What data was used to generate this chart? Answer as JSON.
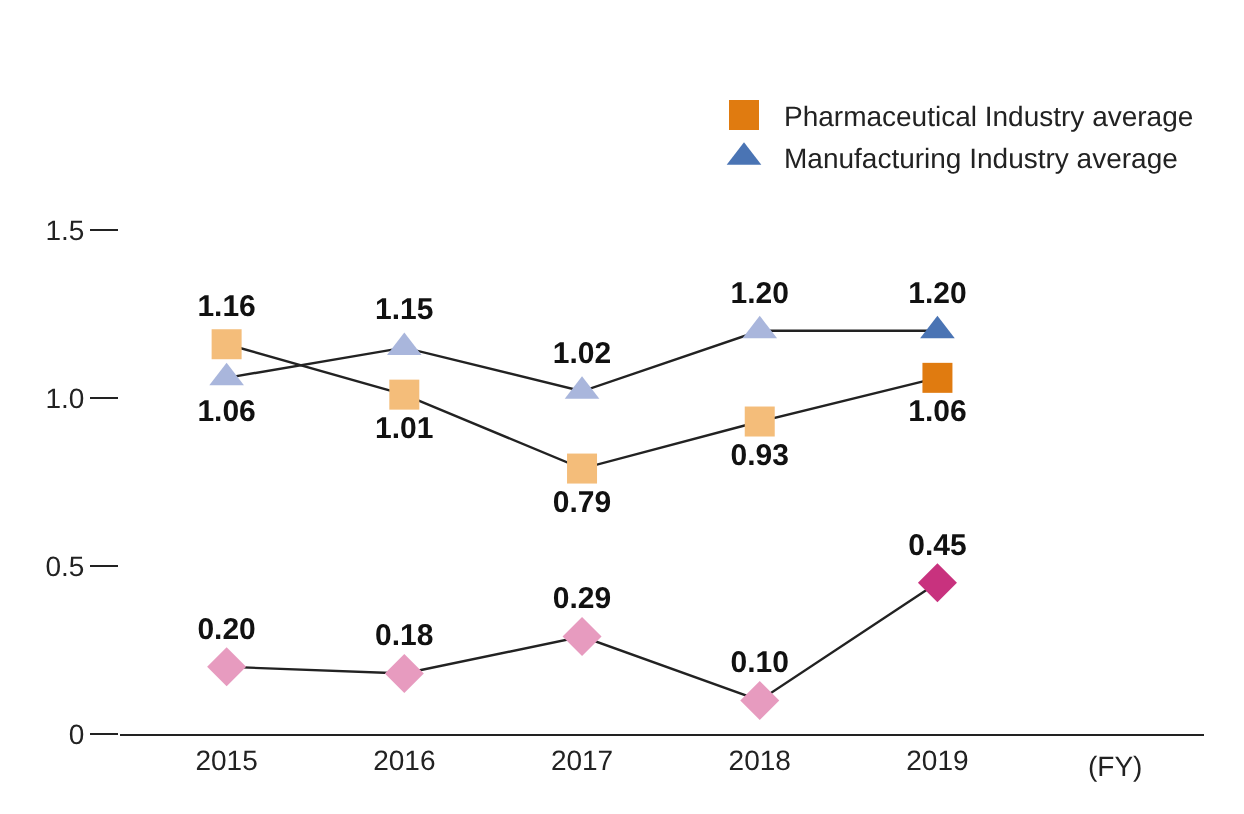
{
  "chart_data": {
    "type": "line",
    "categories": [
      "2015",
      "2016",
      "2017",
      "2018",
      "2019"
    ],
    "xlabel": "(FY)",
    "series": [
      {
        "color": "#222222",
        "colors": [
          "#e79bbf",
          "#e79bbf",
          "#e79bbf",
          "#e79bbf",
          "#c8327e"
        ],
        "values": [
          0.2,
          0.18,
          0.29,
          0.1,
          0.45
        ],
        "value_labels": [
          "0.20",
          "0.18",
          "0.29",
          "0.10",
          "0.45"
        ],
        "marker": "diamond"
      },
      {
        "name": "Pharmaceutical Industry average",
        "color": "#222222",
        "colors": [
          "#f4bd7a",
          "#f4bd7a",
          "#f4bd7a",
          "#f4bd7a",
          "#e07b10"
        ],
        "values": [
          1.16,
          1.01,
          0.79,
          0.93,
          1.06
        ],
        "value_labels": [
          "1.16",
          "1.01",
          "0.79",
          "0.93",
          "1.06"
        ],
        "marker": "square"
      },
      {
        "name": "Manufacturing Industry average",
        "color": "#222222",
        "colors": [
          "#a9b6dc",
          "#a9b6dc",
          "#a9b6dc",
          "#a9b6dc",
          "#4a74b4"
        ],
        "values": [
          1.06,
          1.15,
          1.02,
          1.2,
          1.2
        ],
        "value_labels": [
          "1.06",
          "1.15",
          "1.02",
          "1.20",
          "1.20"
        ],
        "marker": "triangle"
      }
    ],
    "ylim": [
      0,
      1.5
    ],
    "yticks": [
      0,
      0.5,
      {
        "value": 1.0,
        "label": "1.0"
      },
      {
        "value": 1.5,
        "label": "1.5"
      }
    ],
    "grid": false,
    "legend": "top right",
    "line_style": "solid"
  }
}
